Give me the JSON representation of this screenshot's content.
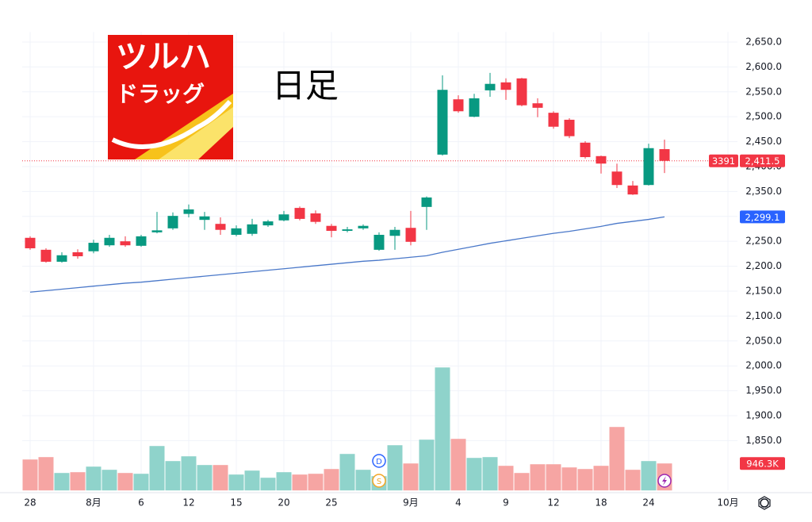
{
  "logo": {
    "line1": "ツルハ",
    "line2": "ドラッグ"
  },
  "chart_data": {
    "type": "candlestick",
    "title": "日足",
    "categories": [
      "28",
      null,
      null,
      null,
      "8月",
      null,
      null,
      "6",
      null,
      null,
      "12",
      null,
      null,
      "15",
      null,
      null,
      "20",
      null,
      null,
      "25",
      null,
      null,
      null,
      null,
      "9月",
      null,
      null,
      "4",
      null,
      null,
      "9",
      null,
      null,
      "12",
      null,
      null,
      "18",
      null,
      null,
      "24",
      null,
      null,
      null,
      null,
      "10月"
    ],
    "open": [
      2257,
      2233,
      2209,
      2228,
      2230,
      2242,
      2250,
      2241,
      2268,
      2276,
      2305,
      2293,
      2285,
      2263,
      2265,
      2282,
      2292,
      2317,
      2306,
      2281,
      2271,
      2276,
      2233,
      2261,
      2277,
      2319,
      2424,
      2535,
      2500,
      2553,
      2569,
      2577,
      2527,
      2508,
      2494,
      2448,
      2421,
      2390,
      2362,
      2363,
      2435,
      null,
      null,
      null,
      null
    ],
    "high": [
      2260,
      2236,
      2228,
      2234,
      2253,
      2263,
      2260,
      2263,
      2309,
      2308,
      2324,
      2309,
      2298,
      2282,
      2295,
      2293,
      2311,
      2320,
      2312,
      2285,
      2279,
      2284,
      2268,
      2279,
      2311,
      2340,
      2583,
      2543,
      2546,
      2588,
      2577,
      2578,
      2537,
      2511,
      2497,
      2451,
      2422,
      2406,
      2371,
      2446,
      2454,
      null,
      null,
      null,
      null
    ],
    "low": [
      2233,
      2207,
      2207,
      2215,
      2226,
      2239,
      2239,
      2239,
      2266,
      2273,
      2298,
      2273,
      2263,
      2260,
      2261,
      2279,
      2290,
      2292,
      2285,
      2258,
      2268,
      2273,
      2231,
      2233,
      2242,
      2273,
      2422,
      2508,
      2499,
      2540,
      2534,
      2521,
      2499,
      2476,
      2457,
      2416,
      2386,
      2357,
      2343,
      2362,
      2387,
      null,
      null,
      null,
      null
    ],
    "close": [
      2236,
      2209,
      2222,
      2220,
      2247,
      2257,
      2242,
      2260,
      2272,
      2301,
      2314,
      2300,
      2273,
      2276,
      2284,
      2290,
      2304,
      2295,
      2289,
      2271,
      2274,
      2281,
      2263,
      2273,
      2249,
      2338,
      2554,
      2511,
      2537,
      2566,
      2554,
      2523,
      2518,
      2480,
      2461,
      2419,
      2406,
      2363,
      2344,
      2437,
      2411.5,
      null,
      null,
      null,
      null
    ],
    "volume": [
      1085000,
      1169000,
      612000,
      640000,
      835000,
      724000,
      612000,
      584000,
      1558000,
      1030000,
      1197000,
      891000,
      891000,
      557000,
      696000,
      445000,
      640000,
      557000,
      584000,
      751000,
      1280000,
      724000,
      501000,
      1586000,
      946000,
      1781000,
      4314000,
      1809000,
      1141000,
      1169000,
      863000,
      612000,
      918000,
      918000,
      807000,
      751000,
      863000,
      2226000,
      724000,
      1030000,
      946300,
      null,
      null,
      null,
      null
    ],
    "ma": [
      2148,
      2151,
      2154,
      2157,
      2160,
      2163,
      2166,
      2168,
      2171,
      2174,
      2177,
      2180,
      2183,
      2186,
      2189,
      2192,
      2195,
      2198,
      2201,
      2204,
      2207,
      2210,
      2212,
      2215,
      2218,
      2221,
      2228,
      2234,
      2240,
      2246,
      2251,
      2256,
      2261,
      2266,
      2270,
      2275,
      2280,
      2286,
      2290,
      2294,
      2299.1,
      null,
      null,
      null,
      null
    ],
    "close_last_label": "2,411.5",
    "countdown": "3391",
    "ma_last_label": "2,299.1",
    "volume_last_label": "946.3K",
    "events": [
      {
        "label": "D",
        "color": "#2962ff"
      },
      {
        "label": "S",
        "color": "#f5a623"
      }
    ],
    "up_color": "#089981",
    "down_color": "#f23645",
    "volume_up_color": "#8fd3cb",
    "volume_down_color": "#f6a5a3",
    "ma_color": "#4a78c9",
    "ma_label_color": "#2962ff",
    "ylim": [
      1750,
      2670
    ],
    "yticks": [
      {
        "value": 2650,
        "label": "2,650.0"
      },
      {
        "value": 2600,
        "label": "2,600.0"
      },
      {
        "value": 2550,
        "label": "2,550.0"
      },
      {
        "value": 2500,
        "label": "2,500.0"
      },
      {
        "value": 2450,
        "label": "2,450.0"
      },
      {
        "value": 2400,
        "label": "2,400.0"
      },
      {
        "value": 2350,
        "label": "2,350.0"
      },
      {
        "value": 2300,
        "label": "2,300.0"
      },
      {
        "value": 2250,
        "label": "2,250.0"
      },
      {
        "value": 2200,
        "label": "2,200.0"
      },
      {
        "value": 2150,
        "label": "2,150.0"
      },
      {
        "value": 2100,
        "label": "2,100.0"
      },
      {
        "value": 2050,
        "label": "2,050.0"
      },
      {
        "value": 2000,
        "label": "2,000.0"
      },
      {
        "value": 1950,
        "label": "1,950.0"
      },
      {
        "value": 1900,
        "label": "1,900.0"
      },
      {
        "value": 1850,
        "label": "1,850.0"
      }
    ],
    "grid": true
  }
}
